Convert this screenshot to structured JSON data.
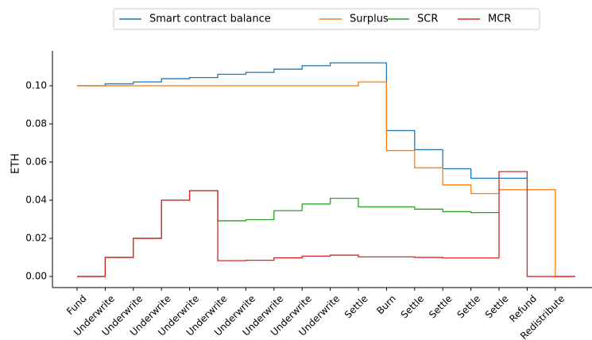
{
  "chart_data": {
    "type": "step",
    "ylabel": "ETH",
    "categories": [
      "Fund",
      "Underwrite",
      "Underwrite",
      "Underwrite",
      "Underwrite",
      "Underwrite",
      "Underwrite",
      "Underwrite",
      "Underwrite",
      "Underwrite",
      "Settle",
      "Burn",
      "Settle",
      "Settle",
      "Settle",
      "Settle",
      "Refund",
      "Redistribute"
    ],
    "series": [
      {
        "name": "Smart contract balance",
        "color": "#1f77b4",
        "values": [
          0.1,
          0.101,
          0.102,
          0.1037,
          0.1043,
          0.106,
          0.107,
          0.1087,
          0.1105,
          0.112,
          0.112,
          0.0765,
          0.0665,
          0.0565,
          0.0515,
          0.0515,
          null,
          null
        ]
      },
      {
        "name": "Surplus",
        "color": "#ff7f0e",
        "values": [
          0.1,
          0.1,
          0.1,
          0.1,
          0.1,
          0.1,
          0.1,
          0.1,
          0.1,
          0.1,
          0.102,
          0.066,
          0.057,
          0.048,
          0.0435,
          0.0455,
          0.0455,
          0
        ]
      },
      {
        "name": "SCR",
        "color": "#2ca02c",
        "values": [
          0,
          0.01,
          0.02,
          0.04,
          0.045,
          0.0292,
          0.0298,
          0.0345,
          0.038,
          0.041,
          0.0365,
          0.0365,
          0.0353,
          0.034,
          0.0335,
          null,
          null,
          null
        ]
      },
      {
        "name": "MCR",
        "color": "#d62728",
        "values": [
          0,
          0.01,
          0.02,
          0.04,
          0.045,
          0.0083,
          0.0085,
          0.0098,
          0.0107,
          0.0112,
          0.0103,
          0.0103,
          0.01,
          0.0097,
          0.0097,
          0.055,
          0,
          0
        ]
      }
    ],
    "ylim": [
      -0.0058,
      0.1183
    ],
    "yticks": [
      {
        "value": 0,
        "label": "0.00"
      },
      {
        "value": 0.02,
        "label": "0.02"
      },
      {
        "value": 0.04,
        "label": "0.04"
      },
      {
        "value": 0.06,
        "label": "0.06"
      },
      {
        "value": 0.08,
        "label": "0.08"
      },
      {
        "value": 0.1,
        "label": "0.10"
      }
    ],
    "legend": "top"
  }
}
